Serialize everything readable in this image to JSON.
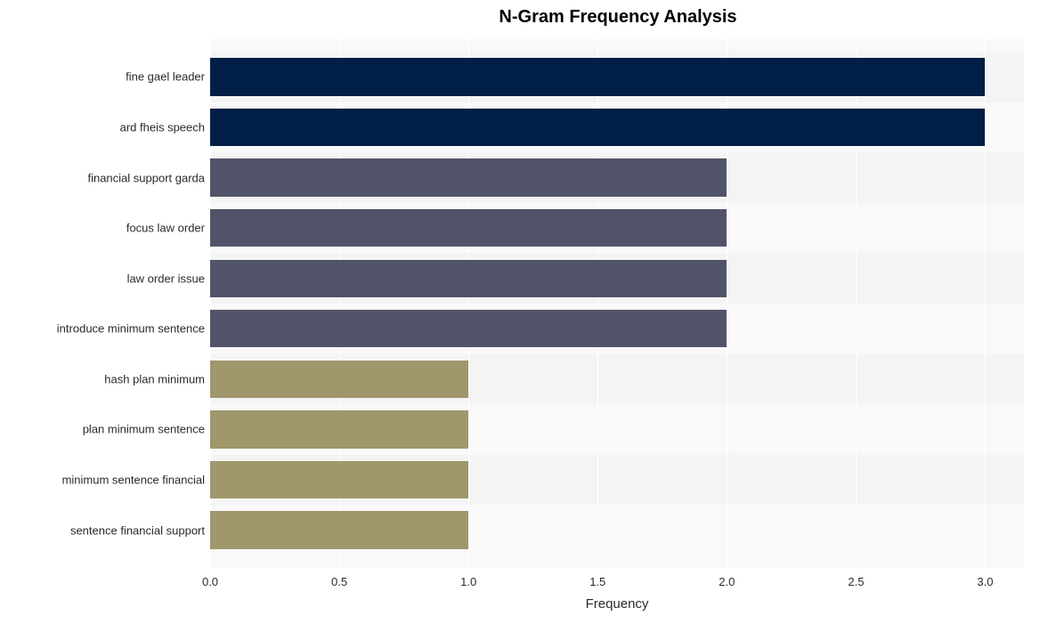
{
  "chart": {
    "type": "bar-horizontal",
    "title": "N-Gram Frequency Analysis",
    "title_fontsize": 20,
    "title_fontweight": "bold",
    "xlabel": "Frequency",
    "xlabel_fontsize": 15,
    "xlim": [
      0.0,
      3.15
    ],
    "xticks": [
      0.0,
      0.5,
      1.0,
      1.5,
      2.0,
      2.5,
      3.0
    ],
    "xtick_labels": [
      "0.0",
      "0.5",
      "1.0",
      "1.5",
      "2.0",
      "2.5",
      "3.0"
    ],
    "background_color": "#f9f9f9",
    "row_alt_color": "#f4f4f4",
    "grid_color": "#ffffff",
    "label_fontsize": 13,
    "label_color": "#2a2a2a",
    "bar_height_ratio": 0.75,
    "categories": [
      "fine gael leader",
      "ard fheis speech",
      "financial support garda",
      "focus law order",
      "law order issue",
      "introduce minimum sentence",
      "hash plan minimum",
      "plan minimum sentence",
      "minimum sentence financial",
      "sentence financial support"
    ],
    "values": [
      3,
      3,
      2,
      2,
      2,
      2,
      1,
      1,
      1,
      1
    ],
    "bar_colors": [
      "#001e46",
      "#001e46",
      "#515468",
      "#515468",
      "#515468",
      "#515468",
      "#a1976c",
      "#a1976c",
      "#a1976c",
      "#a1976c"
    ]
  }
}
